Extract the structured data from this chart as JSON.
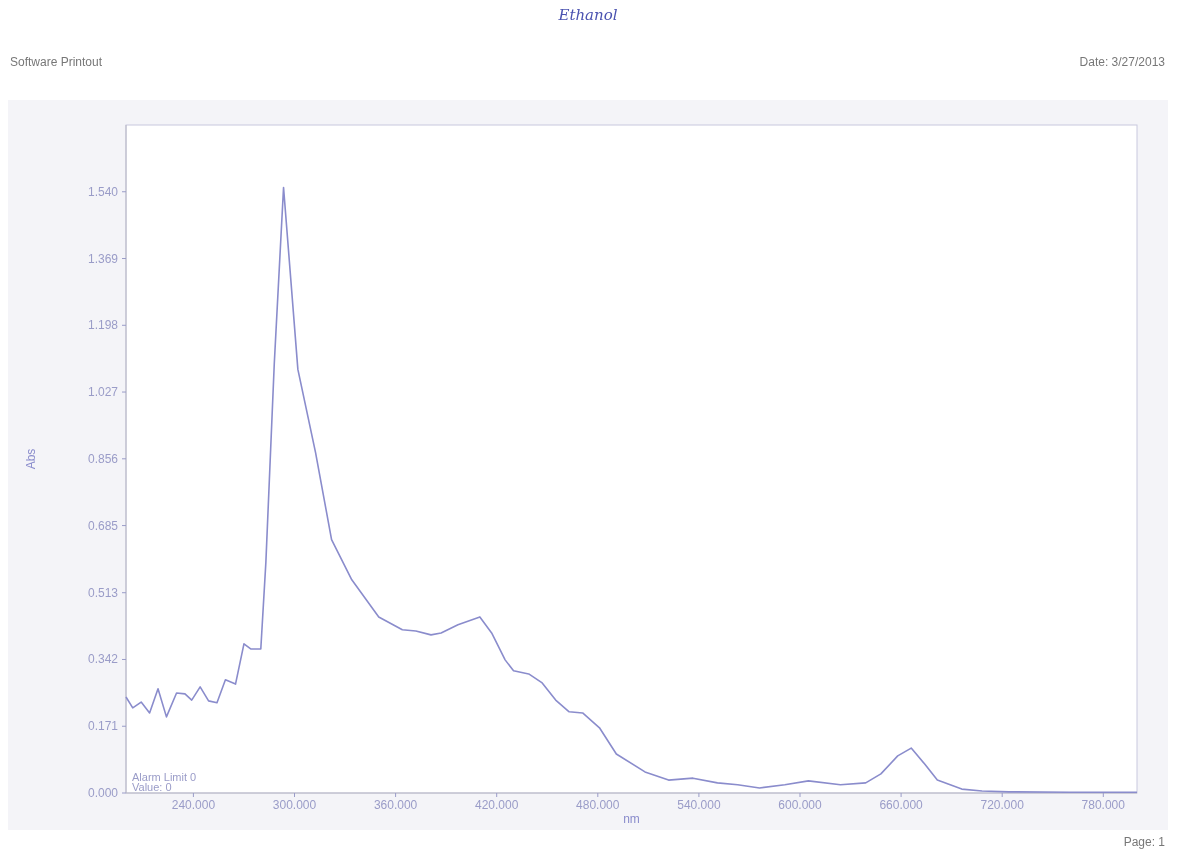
{
  "chart_data": {
    "type": "line",
    "title": "Ethanol",
    "subtitle": "Software Printout",
    "xlabel": "nm",
    "ylabel": "Abs",
    "annotations": [
      "Date: 3/27/2013",
      "Page: 1",
      "Alarm Limit 0",
      "Value: 0"
    ],
    "xlim": [
      200,
      800
    ],
    "ylim": [
      0,
      1.711
    ],
    "xticks": [
      {
        "value": 240,
        "label": "240.000"
      },
      {
        "value": 300,
        "label": "300.000"
      },
      {
        "value": 360,
        "label": "360.000"
      },
      {
        "value": 420,
        "label": "420.000"
      },
      {
        "value": 480,
        "label": "480.000"
      },
      {
        "value": 540,
        "label": "540.000"
      },
      {
        "value": 600,
        "label": "600.000"
      },
      {
        "value": 660,
        "label": "660.000"
      },
      {
        "value": 720,
        "label": "720.000"
      },
      {
        "value": 780,
        "label": "780.000"
      }
    ],
    "yticks": [
      {
        "value": 0,
        "label": "0.000"
      },
      {
        "value": 0.171,
        "label": "0.171"
      },
      {
        "value": 0.342,
        "label": "0.342"
      },
      {
        "value": 0.513,
        "label": "0.513"
      },
      {
        "value": 0.685,
        "label": "0.685"
      },
      {
        "value": 0.856,
        "label": "0.856"
      },
      {
        "value": 1.027,
        "label": "1.027"
      },
      {
        "value": 1.198,
        "label": "1.198"
      },
      {
        "value": 1.369,
        "label": "1.369"
      },
      {
        "value": 1.54,
        "label": "1.540"
      }
    ],
    "grid": false,
    "marker": "none",
    "line_style": "solid",
    "series": [
      {
        "color": "#8a8ccc",
        "x": [
          200,
          204,
          209,
          214,
          219,
          224,
          230,
          235,
          239,
          244,
          249,
          254,
          259,
          265,
          270,
          274,
          280,
          283,
          288,
          293.5,
          302,
          312.5,
          322,
          334,
          350,
          364,
          372,
          381,
          387,
          397,
          410,
          417,
          425,
          430,
          439,
          447,
          455,
          463,
          471,
          481,
          491,
          508,
          522,
          536.5,
          551,
          563,
          576,
          591,
          605,
          624,
          639,
          648,
          658,
          666,
          674,
          681.5,
          696,
          708,
          724,
          760,
          800
        ],
        "values": [
          0.246,
          0.218,
          0.233,
          0.205,
          0.267,
          0.195,
          0.256,
          0.254,
          0.238,
          0.272,
          0.236,
          0.231,
          0.29,
          0.279,
          0.382,
          0.369,
          0.369,
          0.59,
          1.1,
          1.551,
          1.085,
          0.872,
          0.649,
          0.546,
          0.451,
          0.418,
          0.415,
          0.405,
          0.41,
          0.431,
          0.451,
          0.41,
          0.341,
          0.313,
          0.305,
          0.282,
          0.238,
          0.208,
          0.205,
          0.167,
          0.1,
          0.054,
          0.033,
          0.038,
          0.026,
          0.021,
          0.013,
          0.021,
          0.031,
          0.021,
          0.026,
          0.049,
          0.095,
          0.115,
          0.074,
          0.033,
          0.01,
          0.005,
          0.003,
          0.002,
          0.002
        ]
      }
    ]
  }
}
